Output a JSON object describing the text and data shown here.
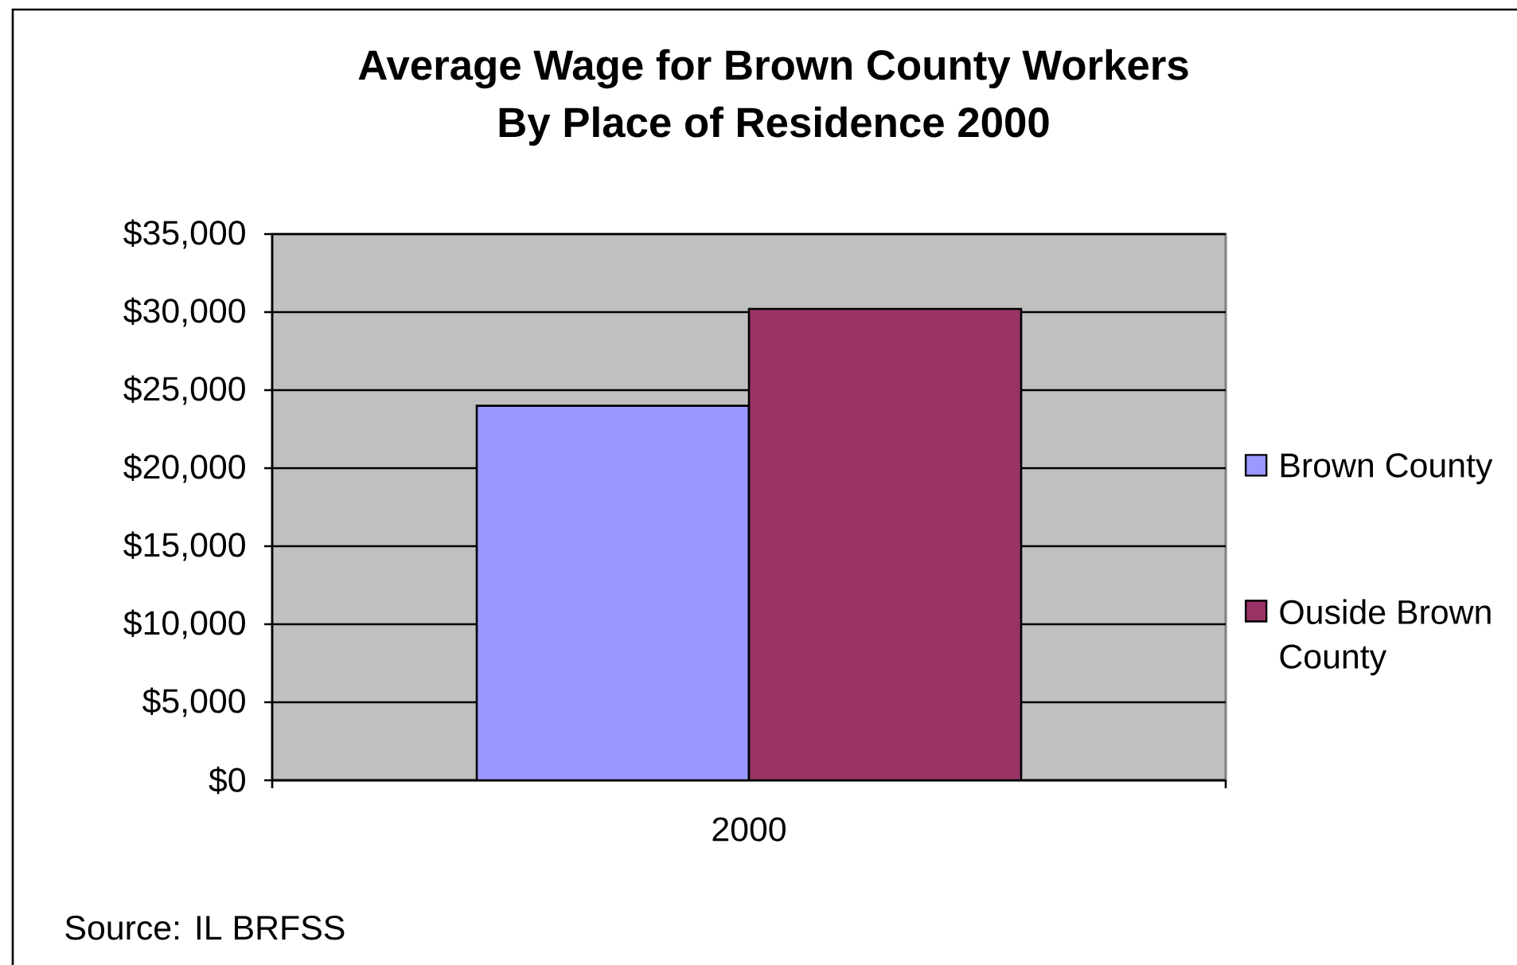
{
  "chart_data": {
    "type": "bar",
    "title": "Average Wage for Brown County Workers",
    "subtitle": "By Place of Residence 2000",
    "categories": [
      "2000"
    ],
    "series": [
      {
        "name": "Brown County",
        "color": "#9999ff",
        "values": [
          24000
        ]
      },
      {
        "name": "Ouside Brown County",
        "color": "#993366",
        "values": [
          30200
        ]
      }
    ],
    "ylim": [
      0,
      35000
    ],
    "yticks": [
      {
        "value": 0,
        "label": "$0"
      },
      {
        "value": 5000,
        "label": "$5,000"
      },
      {
        "value": 10000,
        "label": "$10,000"
      },
      {
        "value": 15000,
        "label": "$15,000"
      },
      {
        "value": 20000,
        "label": "$20,000"
      },
      {
        "value": 25000,
        "label": "$25,000"
      },
      {
        "value": 30000,
        "label": "$30,000"
      },
      {
        "value": 35000,
        "label": "$35,000"
      }
    ],
    "grid": "y",
    "legend": "right",
    "annotations": [
      "Source: IL BRFSS"
    ]
  }
}
